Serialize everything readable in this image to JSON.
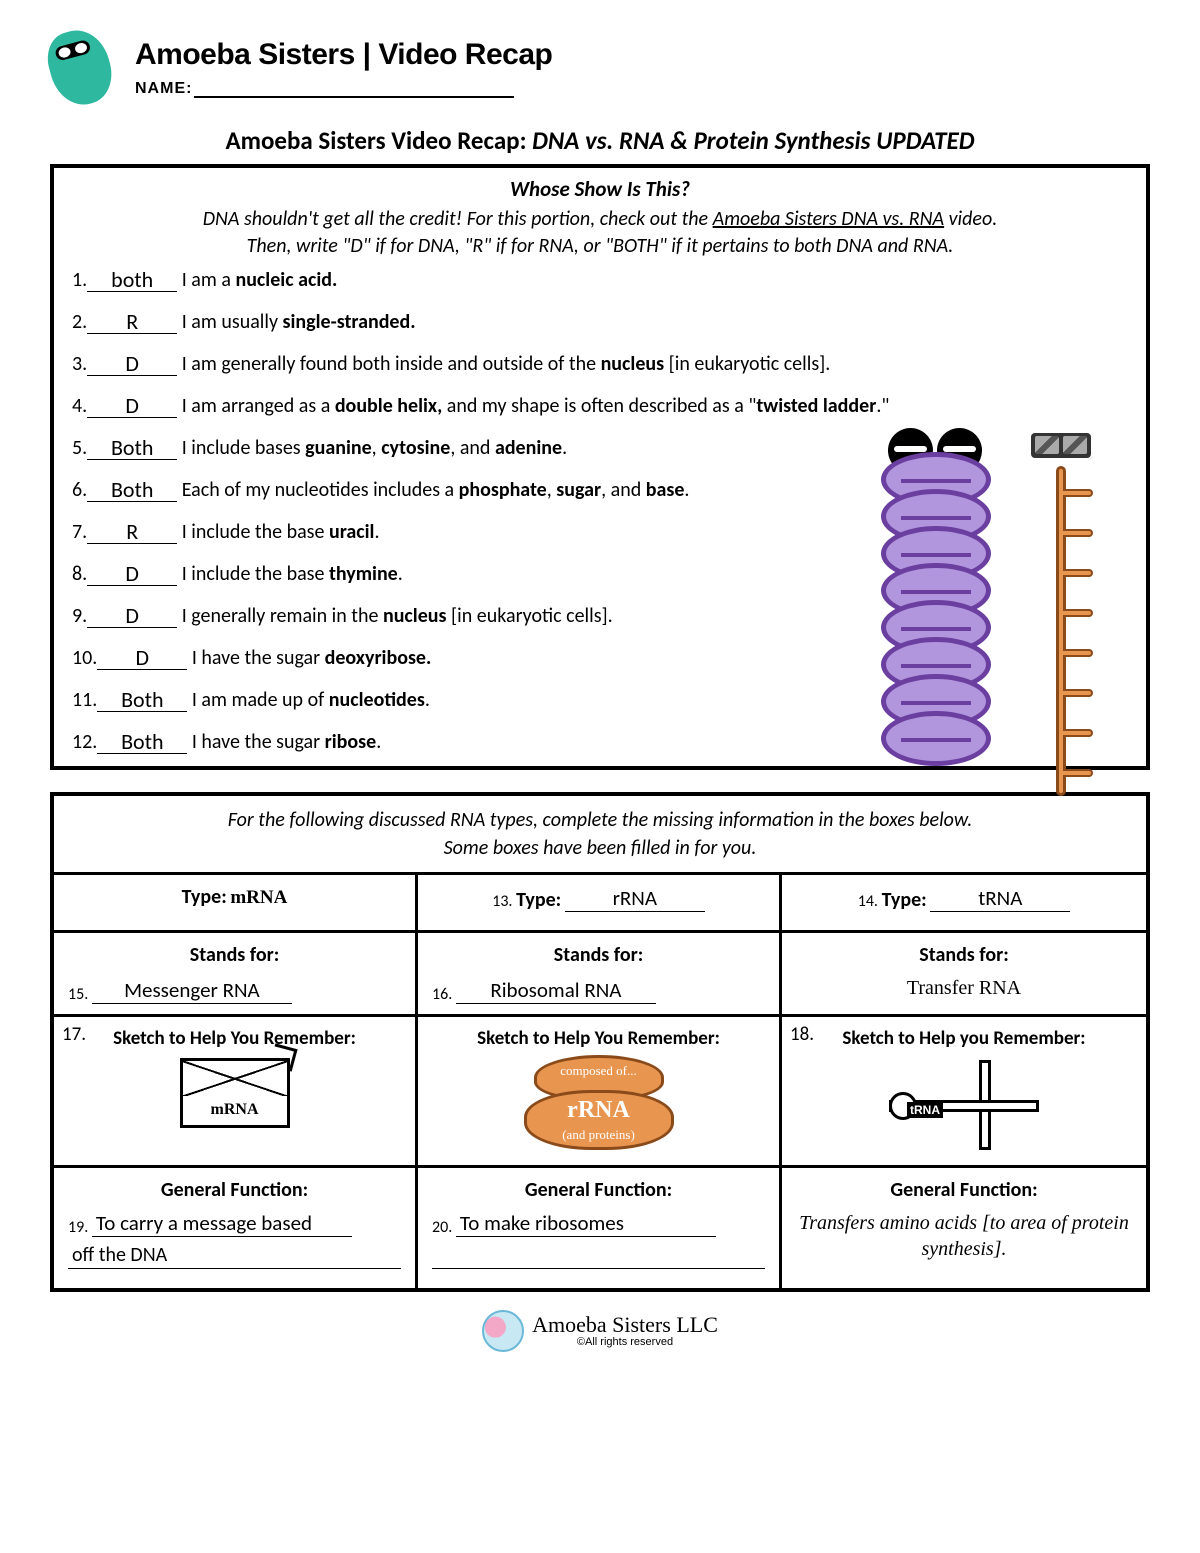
{
  "header": {
    "brand": "Amoeba Sisters | Video Recap",
    "name_label": "NAME:"
  },
  "title_pre": "Amoeba Sisters Video Recap: ",
  "title_it": "DNA vs. RNA & Protein Synthesis UPDATED",
  "box1": {
    "heading": "Whose Show Is This?",
    "sub1": "DNA shouldn't get all the credit! For this portion, check out the ",
    "sub1_u": "Amoeba Sisters DNA vs. RNA",
    "sub1_end": " video.",
    "sub2": "Then, write \"D\" if for DNA, \"R\" if for RNA, or \"BOTH\" if it pertains to both DNA and RNA.",
    "q": [
      {
        "n": "1.",
        "a": "both",
        "t": "I am a <b>nucleic acid.</b>"
      },
      {
        "n": "2.",
        "a": "R",
        "t": "I am usually <b>single-stranded.</b>"
      },
      {
        "n": "3.",
        "a": "D",
        "t": "I am generally found both inside and outside of the <b>nucleus</b> [in eukaryotic cells]."
      },
      {
        "n": "4.",
        "a": "D",
        "t": "I am arranged as a <b>double helix,</b> and my shape is often described as a \"<b>twisted ladder</b>.\""
      },
      {
        "n": "5.",
        "a": "Both",
        "t": "I include bases <b>guanine</b>, <b>cytosine</b>, and <b>adenine</b>."
      },
      {
        "n": "6.",
        "a": "Both",
        "t": "Each of my nucleotides includes a <b>phosphate</b>, <b>sugar</b>, and <b>base</b>."
      },
      {
        "n": "7.",
        "a": "R",
        "t": "I include the base <b>uracil</b>."
      },
      {
        "n": "8.",
        "a": "D",
        "t": "I include the base <b>thymine</b>."
      },
      {
        "n": "9.",
        "a": "D",
        "t": "I generally remain in the <b>nucleus</b> [in eukaryotic cells]."
      },
      {
        "n": "10.",
        "a": "D",
        "t": "I have the sugar <b>deoxyribose.</b>"
      },
      {
        "n": "11.",
        "a": "Both",
        "t": "I am made up of <b>nucleotides</b>."
      },
      {
        "n": "12.",
        "a": "Both",
        "t": "I have the sugar <b>ribose</b>."
      }
    ]
  },
  "box2": {
    "hdr1": "For the following discussed RNA types, complete the missing information in the boxes below.",
    "hdr2": "Some boxes have been filled in for you.",
    "type_lbl": "Type:",
    "mrna": "mRNA",
    "q13": "13.",
    "rRNA": "rRNA",
    "q14": "14.",
    "tRNA": "tRNA",
    "stands": "Stands for:",
    "q15": "15.",
    "messenger": "Messenger RNA",
    "q16": "16.",
    "ribosomal": "Ribosomal RNA",
    "transfer": "Transfer RNA",
    "sketch": "Sketch to Help You Remember:",
    "sketch3": "Sketch to Help you Remember:",
    "q17": "17.",
    "q18": "18.",
    "env_label": "mRNA",
    "ribo1": "composed of...",
    "ribo2": "rRNA",
    "ribo3": "(and proteins)",
    "trna_label": "tRNA",
    "func": "General Function:",
    "q19": "19.",
    "f19a": "To carry a message based",
    "f19b": "off the DNA",
    "q20": "20.",
    "f20a": "To make ribosomes",
    "f20b": "",
    "f_trna": "Transfers amino acids [to area of protein synthesis]."
  },
  "footer": {
    "name": "Amoeba Sisters LLC",
    "rights": "©All rights reserved"
  },
  "colors": {
    "teal": "#2fb8a0",
    "purple": "#b195dd",
    "purple_dk": "#6a3fa0",
    "orange": "#e8954f",
    "orange_dk": "#8a4a1a"
  }
}
